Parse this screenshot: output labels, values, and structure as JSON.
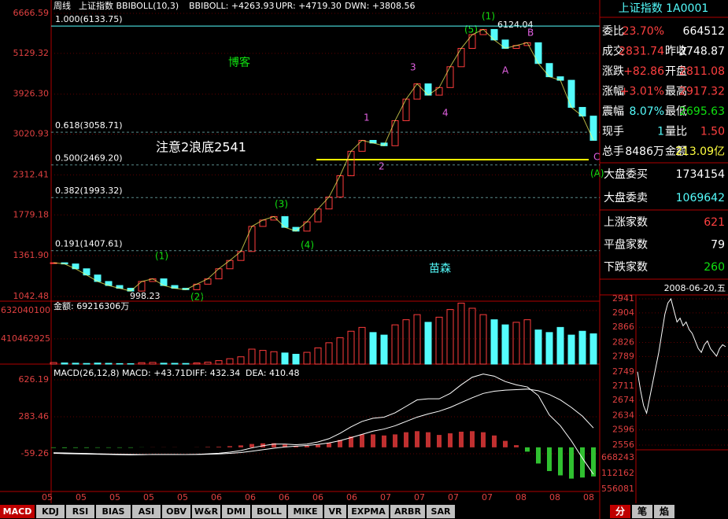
{
  "header": {
    "period": "周线",
    "indicator": "上证指数 BBIBOLL(10,3)",
    "mid": "BBIBOLL: +4263.93",
    "upr": "UPR: +4719.30",
    "dwn": "DWN: +3808.56"
  },
  "price_panel": {
    "log_scale": true,
    "ylim": [
      1042.48,
      6666.59
    ],
    "yticks": [
      6666.59,
      5129.32,
      {
        "value": 3926.3,
        "label": "3926.30"
      },
      3020.93,
      2312.41,
      1779.18,
      {
        "value": 1361.9,
        "label": "1361.90"
      },
      1042.48
    ],
    "fib_lines": [
      {
        "value": 6133.75,
        "label": "1.000(6133.75)"
      },
      {
        "value": 3058.71,
        "label": "0.618(3058.71)"
      },
      {
        "value": 2469.2,
        "label": "0.500(2469.20)"
      },
      {
        "value": 1993.32,
        "label": "0.382(1993.32)"
      },
      {
        "value": 1407.61,
        "label": "0.191(1407.61)"
      }
    ],
    "close": [
      1300,
      1290,
      1250,
      1200,
      1150,
      1120,
      1100,
      1080,
      1150,
      1170,
      1120,
      1100,
      1090,
      1130,
      1170,
      1250,
      1320,
      1400,
      1650,
      1720,
      1760,
      1640,
      1600,
      1700,
      1850,
      2000,
      2300,
      2700,
      2900,
      2850,
      2800,
      3300,
      3800,
      4200,
      3900,
      4100,
      4700,
      5300,
      5800,
      6000,
      5600,
      5300,
      5400,
      5500,
      4800,
      4400,
      4300,
      3600,
      3400,
      2900
    ],
    "up_color": "#ff3c3c",
    "down_color": "#54fcfc",
    "annotations": {
      "note": "注意2浪底2541",
      "blog": "博客",
      "author": "苗森",
      "peak": "6124.04",
      "low": "998.23",
      "w1": "(1)",
      "w5": "(5)",
      "b": "B",
      "a": "A",
      "n3": "3",
      "n1": "1",
      "n2": "2",
      "n4": "4",
      "c": "C",
      "ca": "(A)",
      "p3": "(3)",
      "p4": "(4)",
      "p1": "(1)",
      "p2": "(2)"
    }
  },
  "volume_panel": {
    "title": "金额: 69216306万",
    "ylim": [
      213000000,
      693000000
    ],
    "yticks": [
      632040100,
      410462925
    ],
    "values": [
      225000000,
      222000000,
      220000000,
      218000000,
      221000000,
      219000000,
      217000000,
      216000000,
      224000000,
      226000000,
      220000000,
      219000000,
      218000000,
      222000000,
      228000000,
      240000000,
      255000000,
      270000000,
      330000000,
      320000000,
      310000000,
      300000000,
      290000000,
      305000000,
      340000000,
      380000000,
      420000000,
      470000000,
      500000000,
      460000000,
      440000000,
      520000000,
      560000000,
      600000000,
      540000000,
      580000000,
      640000000,
      690000000,
      650000000,
      600000000,
      560000000,
      520000000,
      540000000,
      560000000,
      480000000,
      460000000,
      500000000,
      440000000,
      470000000,
      450000000
    ]
  },
  "macd_panel": {
    "title": "MACD(26,12,8) MACD: +43.71",
    "diff_label": "DIFF: 432.34",
    "dea_label": "DEA: 410.48",
    "ylim": [
      -409.3,
      757.4
    ],
    "yticks": [
      626.19,
      283.46,
      -59.26
    ],
    "diff": [
      -55,
      -58,
      -60,
      -62,
      -64,
      -66,
      -68,
      -70,
      -68,
      -66,
      -66,
      -66,
      -67,
      -65,
      -60,
      -55,
      -45,
      -30,
      -5,
      15,
      30,
      30,
      25,
      30,
      50,
      80,
      130,
      190,
      240,
      270,
      280,
      320,
      380,
      440,
      450,
      450,
      500,
      580,
      650,
      680,
      660,
      610,
      580,
      560,
      480,
      300,
      200,
      60,
      -100,
      -250
    ],
    "dea": [
      -50,
      -52,
      -55,
      -57,
      -60,
      -62,
      -64,
      -66,
      -67,
      -67,
      -67,
      -67,
      -67,
      -66,
      -64,
      -61,
      -56,
      -48,
      -36,
      -22,
      -8,
      4,
      11,
      17,
      27,
      41,
      62,
      90,
      120,
      150,
      170,
      200,
      240,
      280,
      310,
      335,
      370,
      415,
      460,
      500,
      520,
      530,
      535,
      540,
      525,
      490,
      440,
      370,
      290,
      180
    ],
    "macd": [
      -5,
      -6,
      -5,
      -5,
      -4,
      -4,
      -4,
      -4,
      -1,
      1,
      1,
      1,
      0,
      1,
      4,
      6,
      11,
      18,
      31,
      37,
      38,
      26,
      14,
      13,
      23,
      39,
      68,
      100,
      120,
      120,
      110,
      120,
      140,
      150,
      140,
      115,
      130,
      145,
      150,
      140,
      110,
      60,
      20,
      -40,
      -150,
      -220,
      -260,
      -290,
      -280,
      -270
    ]
  },
  "x_labels": [
    "05",
    "05",
    "05",
    "05",
    "05",
    "06",
    "06",
    "06",
    "06",
    "06",
    "07",
    "07",
    "07",
    "07",
    "08",
    "08",
    "08"
  ],
  "indicator_tabs": [
    "MACD",
    "KDJ",
    "RSI",
    "BIAS",
    "ASI",
    "OBV",
    "W&R",
    "DMI",
    "BOLL",
    "MIKE",
    "VR",
    "EXPMA",
    "ARBR",
    "SAR"
  ],
  "quote_panel": {
    "title": "上证指数 1A0001",
    "rows": [
      [
        "委比",
        "23.70%",
        "",
        "664512"
      ],
      [
        "成交",
        "2831.74",
        "昨收",
        "2748.87"
      ],
      [
        "涨跌",
        "+82.86",
        "开盘",
        "2811.08"
      ],
      [
        "涨幅",
        "+3.01%",
        "最高",
        "2917.32"
      ],
      [
        "震幅",
        "8.07%",
        "最低",
        "2695.63"
      ],
      [
        "现手",
        "1",
        "量比",
        "1.50"
      ],
      [
        "总手",
        "8486万",
        "金额",
        "213.09亿"
      ]
    ],
    "market": [
      [
        "大盘委买",
        "1734154"
      ],
      [
        "大盘委卖",
        "1069642"
      ]
    ],
    "breadth": [
      [
        "上涨家数",
        "621"
      ],
      [
        "平盘家数",
        "79"
      ],
      [
        "下跌家数",
        "260"
      ]
    ]
  },
  "intraday": {
    "date": "2008-06-20,五",
    "ylim": [
      2556,
      2941
    ],
    "yticks": [
      2941,
      2904,
      2866,
      2826,
      2789,
      2749,
      2711,
      2674,
      2634,
      2596,
      2556
    ],
    "values": [
      2749,
      2700,
      2660,
      2640,
      2680,
      2720,
      2760,
      2800,
      2850,
      2900,
      2930,
      2941,
      2910,
      2880,
      2890,
      2870,
      2880,
      2860,
      2850,
      2830,
      2810,
      2800,
      2820,
      2830,
      2810,
      2800,
      2790,
      2810,
      2820,
      2815
    ],
    "vol_labels": [
      "668243",
      "112162",
      "556081"
    ]
  },
  "side_tabs": [
    "分",
    "笔",
    "焰"
  ]
}
